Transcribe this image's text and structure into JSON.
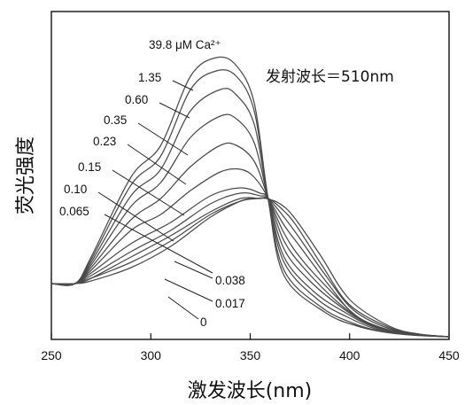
{
  "chart_data": {
    "type": "line",
    "xlabel": "激发波长(nm)",
    "ylabel": "荧光强度",
    "annotation": "发射波长＝510nm",
    "top_label": "39.8 μM Ca²⁺",
    "xlim": [
      250,
      450
    ],
    "ylim": [
      0,
      1
    ],
    "xticks": [
      250,
      300,
      350,
      400,
      450
    ],
    "tick_labels": [
      "250",
      "300",
      "350",
      "400",
      "450"
    ],
    "grid": false,
    "legend": "none",
    "series_labels": [
      "39.8 μM Ca²⁺",
      "1.35",
      "0.60",
      "0.35",
      "0.23",
      "0.15",
      "0.10",
      "0.065",
      "0.038",
      "0.017",
      "0"
    ],
    "series": [
      {
        "name": "0",
        "values": [
          [
            250,
            0.2
          ],
          [
            262,
            0.2
          ],
          [
            270,
            0.21
          ],
          [
            290,
            0.26
          ],
          [
            310,
            0.34
          ],
          [
            330,
            0.45
          ],
          [
            345,
            0.51
          ],
          [
            352,
            0.52
          ],
          [
            358,
            0.52
          ],
          [
            365,
            0.5
          ],
          [
            372,
            0.45
          ],
          [
            385,
            0.31
          ],
          [
            400,
            0.14
          ],
          [
            420,
            0.04
          ],
          [
            435,
            0.01
          ],
          [
            450,
            0.0
          ]
        ]
      },
      {
        "name": "0.017",
        "values": [
          [
            250,
            0.2
          ],
          [
            262,
            0.2
          ],
          [
            270,
            0.22
          ],
          [
            290,
            0.28
          ],
          [
            310,
            0.36
          ],
          [
            330,
            0.46
          ],
          [
            345,
            0.51
          ],
          [
            354,
            0.52
          ],
          [
            359,
            0.52
          ],
          [
            366,
            0.48
          ],
          [
            373,
            0.42
          ],
          [
            386,
            0.27
          ],
          [
            400,
            0.12
          ],
          [
            420,
            0.035
          ],
          [
            435,
            0.01
          ],
          [
            450,
            0.0
          ]
        ]
      },
      {
        "name": "0.038",
        "values": [
          [
            250,
            0.2
          ],
          [
            262,
            0.2
          ],
          [
            270,
            0.22
          ],
          [
            290,
            0.3
          ],
          [
            310,
            0.38
          ],
          [
            330,
            0.47
          ],
          [
            345,
            0.52
          ],
          [
            355,
            0.52
          ],
          [
            359,
            0.52
          ],
          [
            367,
            0.45
          ],
          [
            374,
            0.38
          ],
          [
            388,
            0.23
          ],
          [
            402,
            0.1
          ],
          [
            420,
            0.03
          ],
          [
            435,
            0.008
          ],
          [
            450,
            0.0
          ]
        ]
      },
      {
        "name": "0.065",
        "values": [
          [
            250,
            0.2
          ],
          [
            262,
            0.2
          ],
          [
            270,
            0.23
          ],
          [
            290,
            0.32
          ],
          [
            310,
            0.4
          ],
          [
            330,
            0.5
          ],
          [
            345,
            0.54
          ],
          [
            355,
            0.53
          ],
          [
            359,
            0.52
          ],
          [
            367,
            0.42
          ],
          [
            375,
            0.34
          ],
          [
            390,
            0.19
          ],
          [
            403,
            0.08
          ],
          [
            420,
            0.025
          ],
          [
            435,
            0.007
          ],
          [
            450,
            0.0
          ]
        ]
      },
      {
        "name": "0.10",
        "values": [
          [
            250,
            0.2
          ],
          [
            262,
            0.2
          ],
          [
            270,
            0.24
          ],
          [
            290,
            0.35
          ],
          [
            310,
            0.43
          ],
          [
            330,
            0.53
          ],
          [
            345,
            0.56
          ],
          [
            355,
            0.54
          ],
          [
            359,
            0.52
          ],
          [
            367,
            0.39
          ],
          [
            376,
            0.29
          ],
          [
            392,
            0.16
          ],
          [
            405,
            0.07
          ],
          [
            420,
            0.02
          ],
          [
            435,
            0.006
          ],
          [
            450,
            0.0
          ]
        ]
      },
      {
        "name": "0.15",
        "values": [
          [
            250,
            0.2
          ],
          [
            262,
            0.2
          ],
          [
            270,
            0.25
          ],
          [
            290,
            0.4
          ],
          [
            305,
            0.46
          ],
          [
            320,
            0.55
          ],
          [
            335,
            0.62
          ],
          [
            345,
            0.63
          ],
          [
            352,
            0.6
          ],
          [
            359,
            0.52
          ],
          [
            367,
            0.36
          ],
          [
            378,
            0.25
          ],
          [
            394,
            0.13
          ],
          [
            407,
            0.06
          ],
          [
            422,
            0.018
          ],
          [
            450,
            0.0
          ]
        ]
      },
      {
        "name": "0.23",
        "values": [
          [
            250,
            0.2
          ],
          [
            262,
            0.2
          ],
          [
            270,
            0.26
          ],
          [
            290,
            0.44
          ],
          [
            305,
            0.52
          ],
          [
            320,
            0.64
          ],
          [
            335,
            0.72
          ],
          [
            343,
            0.72
          ],
          [
            352,
            0.66
          ],
          [
            359,
            0.52
          ],
          [
            367,
            0.33
          ],
          [
            380,
            0.21
          ],
          [
            396,
            0.11
          ],
          [
            409,
            0.05
          ],
          [
            425,
            0.015
          ],
          [
            450,
            0.0
          ]
        ]
      },
      {
        "name": "0.35",
        "values": [
          [
            250,
            0.2
          ],
          [
            262,
            0.2
          ],
          [
            270,
            0.27
          ],
          [
            290,
            0.49
          ],
          [
            305,
            0.58
          ],
          [
            320,
            0.75
          ],
          [
            335,
            0.83
          ],
          [
            343,
            0.82
          ],
          [
            352,
            0.73
          ],
          [
            359,
            0.52
          ],
          [
            367,
            0.3
          ],
          [
            382,
            0.17
          ],
          [
            398,
            0.09
          ],
          [
            411,
            0.04
          ],
          [
            427,
            0.012
          ],
          [
            450,
            0.0
          ]
        ]
      },
      {
        "name": "0.60",
        "values": [
          [
            250,
            0.2
          ],
          [
            262,
            0.2
          ],
          [
            270,
            0.28
          ],
          [
            290,
            0.53
          ],
          [
            305,
            0.63
          ],
          [
            320,
            0.85
          ],
          [
            335,
            0.93
          ],
          [
            343,
            0.91
          ],
          [
            352,
            0.8
          ],
          [
            359,
            0.52
          ],
          [
            367,
            0.28
          ],
          [
            384,
            0.14
          ],
          [
            400,
            0.07
          ],
          [
            413,
            0.03
          ],
          [
            429,
            0.01
          ],
          [
            450,
            0.0
          ]
        ]
      },
      {
        "name": "1.35",
        "values": [
          [
            250,
            0.2
          ],
          [
            262,
            0.2
          ],
          [
            270,
            0.29
          ],
          [
            290,
            0.57
          ],
          [
            305,
            0.68
          ],
          [
            320,
            0.93
          ],
          [
            333,
            1.0
          ],
          [
            343,
            0.98
          ],
          [
            352,
            0.85
          ],
          [
            359,
            0.52
          ],
          [
            367,
            0.25
          ],
          [
            386,
            0.11
          ],
          [
            402,
            0.05
          ],
          [
            415,
            0.022
          ],
          [
            430,
            0.008
          ],
          [
            450,
            0.0
          ]
        ]
      },
      {
        "name": "39.8 μM Ca²⁺",
        "values": [
          [
            250,
            0.2
          ],
          [
            262,
            0.2
          ],
          [
            270,
            0.3
          ],
          [
            290,
            0.6
          ],
          [
            305,
            0.72
          ],
          [
            320,
            0.98
          ],
          [
            333,
            1.05
          ],
          [
            343,
            1.02
          ],
          [
            352,
            0.88
          ],
          [
            359,
            0.52
          ],
          [
            367,
            0.23
          ],
          [
            388,
            0.09
          ],
          [
            404,
            0.04
          ],
          [
            417,
            0.018
          ],
          [
            432,
            0.006
          ],
          [
            450,
            0.0
          ]
        ]
      }
    ]
  }
}
